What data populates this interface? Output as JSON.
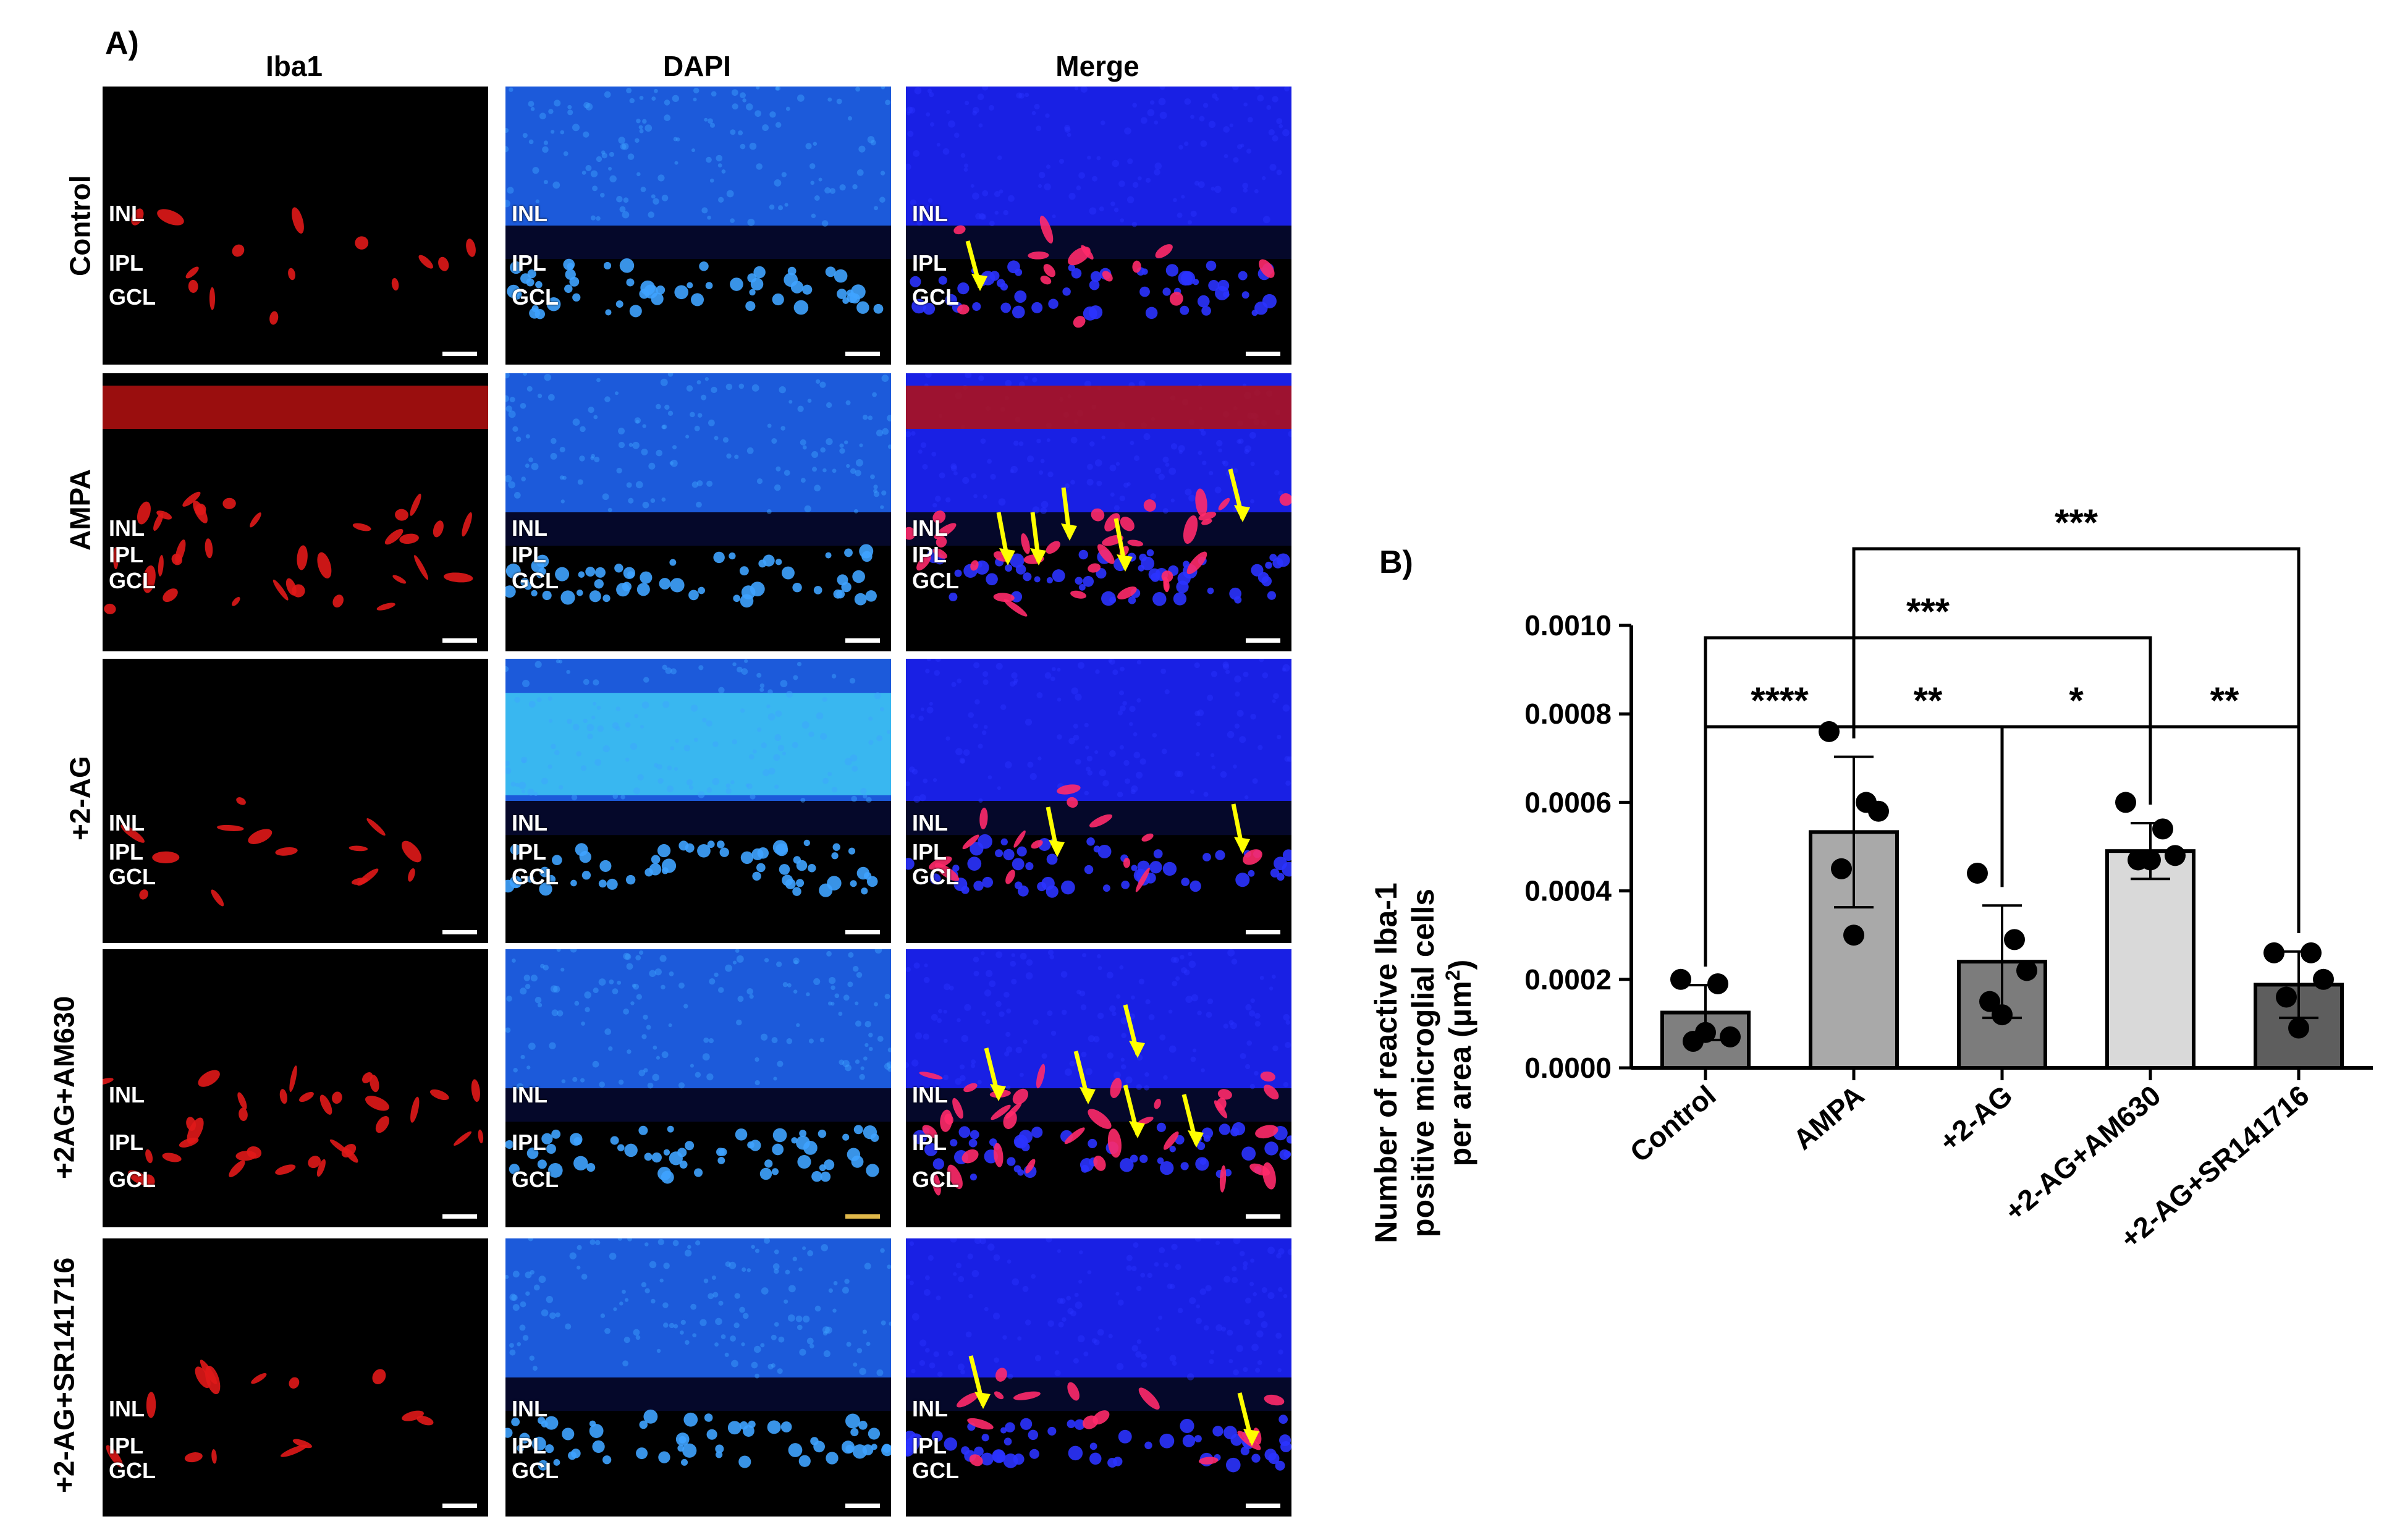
{
  "panel_a": {
    "label": "A)",
    "columns": [
      "Iba1",
      "DAPI",
      "Merge"
    ],
    "rows": [
      {
        "label": "Control",
        "label2": ""
      },
      {
        "label": "AMPA",
        "label2": ""
      },
      {
        "label": "+2-AG",
        "label2": ""
      },
      {
        "label": "+2AG",
        "label2": "+AM630"
      },
      {
        "label": "+2-AG",
        "label2": "+SR141716"
      }
    ],
    "layers": [
      "INL",
      "IPL",
      "GCL"
    ],
    "colors": {
      "iba1": "#e01818",
      "dapi": "#1f6cff",
      "merge": "#2a32ff",
      "arrow": "#ffff00",
      "background": "#000000"
    }
  },
  "panel_b": {
    "label": "B)",
    "chart_data": {
      "type": "bar",
      "ylabel_line1": "Number of reactive Iba-1",
      "ylabel_line2": "positive microglial cells",
      "ylabel_line3": "per area (μm",
      "ylabel_sup": "2",
      "ylabel_end": ")",
      "ylim": [
        0,
        0.001
      ],
      "yticks": [
        "0.0000",
        "0.0002",
        "0.0004",
        "0.0006",
        "0.0008",
        "0.0010"
      ],
      "ytick_values": [
        0,
        0.0002,
        0.0004,
        0.0006,
        0.0008,
        0.001
      ],
      "categories": [
        "Control",
        "AMPA",
        "+2-AG",
        "+2-AG+AM630",
        "+2-AG+SR141716"
      ],
      "values": [
        0.000125,
        0.000533,
        0.00024,
        0.00049,
        0.000188
      ],
      "errors": [
        6.2e-05,
        0.00017,
        0.000127,
        6.3e-05,
        7.5e-05
      ],
      "bar_colors": [
        "#7f7f7f",
        "#a9a9a9",
        "#7c7c7c",
        "#d9d9d9",
        "#5e5e5e"
      ],
      "points": [
        [
          0.0002,
          0.00019,
          7e-05,
          6e-05,
          8e-05
        ],
        [
          0.00076,
          0.0006,
          0.00058,
          0.00045,
          0.0003
        ],
        [
          0.00044,
          0.00029,
          0.00022,
          0.00015,
          0.00012
        ],
        [
          0.0006,
          0.00054,
          0.00048,
          0.00047,
          0.00047
        ],
        [
          0.00026,
          0.00026,
          0.0002,
          0.00016,
          9e-05
        ]
      ],
      "significance": [
        {
          "from": 0,
          "to": 1,
          "label": "****"
        },
        {
          "from": 1,
          "to": 2,
          "label": "**"
        },
        {
          "from": 2,
          "to": 3,
          "label": "*"
        },
        {
          "from": 3,
          "to": 4,
          "label": "**"
        },
        {
          "from": 0,
          "to": 3,
          "label": "***"
        },
        {
          "from": 1,
          "to": 4,
          "label": "***"
        }
      ]
    }
  }
}
